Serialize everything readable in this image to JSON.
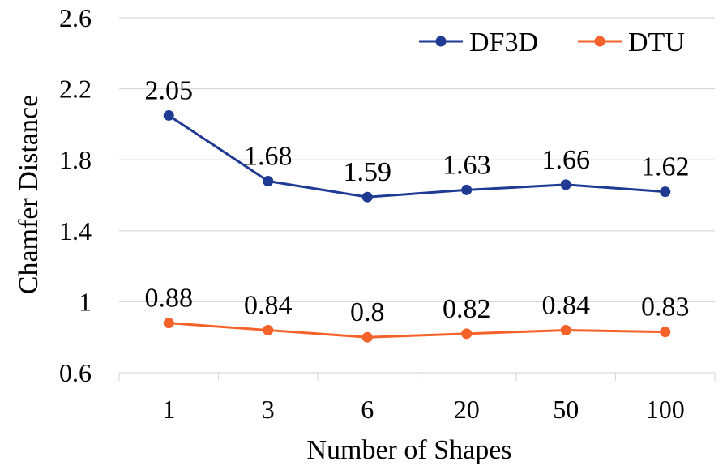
{
  "chart_data": {
    "type": "line",
    "title": "",
    "xlabel": "Number of Shapes",
    "ylabel": "Chamfer Distance",
    "categories": [
      "1",
      "3",
      "6",
      "20",
      "50",
      "100"
    ],
    "ylim": [
      0.6,
      2.6
    ],
    "yticks": [
      0.6,
      1.0,
      1.4,
      1.8,
      2.2,
      2.6
    ],
    "ytick_labels": [
      "0.6",
      "1",
      "1.4",
      "1.8",
      "2.2",
      "2.6"
    ],
    "grid": true,
    "legend_position": "top-right",
    "series": [
      {
        "name": "DF3D",
        "color": "#1f3a93",
        "values": [
          2.05,
          1.68,
          1.59,
          1.63,
          1.66,
          1.62
        ],
        "labels": [
          "2.05",
          "1.68",
          "1.59",
          "1.63",
          "1.66",
          "1.62"
        ]
      },
      {
        "name": "DTU",
        "color": "#f4622a",
        "values": [
          0.88,
          0.84,
          0.8,
          0.82,
          0.84,
          0.83
        ],
        "labels": [
          "0.88",
          "0.84",
          "0.8",
          "0.82",
          "0.84",
          "0.83"
        ]
      }
    ]
  }
}
